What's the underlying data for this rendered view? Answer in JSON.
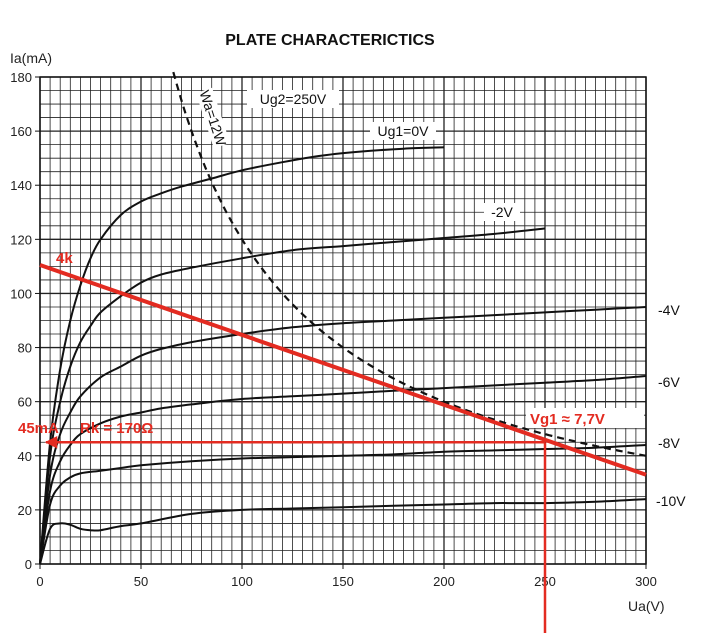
{
  "chart_data": {
    "type": "line",
    "title": "PLATE CHARACTERICTICS",
    "xlabel": "Ua(V)",
    "ylabel": "Ia(mA)",
    "xlim": [
      0,
      300
    ],
    "ylim": [
      0,
      180
    ],
    "xticks": [
      0,
      50,
      100,
      150,
      200,
      250,
      300
    ],
    "yticks": [
      0,
      20,
      40,
      60,
      80,
      100,
      120,
      140,
      160,
      180
    ],
    "grid": true,
    "condition_label": "Ug2=250V",
    "series": [
      {
        "name": "Ug1=0V",
        "label": "Ug1=0V",
        "x": [
          0,
          5,
          10,
          15,
          20,
          25,
          30,
          40,
          50,
          60,
          70,
          85,
          100,
          120,
          140,
          160,
          180,
          200
        ],
        "y": [
          0,
          45,
          72,
          90,
          103,
          113,
          120,
          129,
          134,
          137,
          139.5,
          142.5,
          145.5,
          148.5,
          151,
          152.5,
          153.5,
          154
        ]
      },
      {
        "name": "-2V",
        "label": "-2V",
        "x": [
          0,
          5,
          10,
          15,
          20,
          25,
          30,
          40,
          50,
          60,
          75,
          100,
          125,
          150,
          175,
          200,
          225,
          250
        ],
        "y": [
          0,
          40,
          60,
          73,
          82,
          88,
          93,
          99,
          104,
          107,
          109.5,
          113,
          116,
          117.5,
          119,
          120.5,
          122,
          124
        ]
      },
      {
        "name": "-4V",
        "label": "-4V",
        "x": [
          0,
          5,
          10,
          15,
          20,
          30,
          40,
          50,
          60,
          75,
          100,
          125,
          150,
          175,
          200,
          225,
          250,
          275,
          300
        ],
        "y": [
          0,
          33,
          48,
          56,
          62,
          69,
          73,
          77,
          79.5,
          82,
          85,
          87.5,
          89,
          90,
          91,
          92,
          93,
          94,
          95
        ]
      },
      {
        "name": "-6V",
        "label": "-6V",
        "x": [
          0,
          5,
          10,
          15,
          20,
          30,
          40,
          50,
          60,
          75,
          100,
          125,
          150,
          175,
          200,
          225,
          250,
          275,
          300
        ],
        "y": [
          0,
          27,
          38,
          44,
          48,
          52,
          54.5,
          56,
          57.5,
          59,
          61,
          62,
          63,
          64,
          65,
          66,
          67,
          68,
          69.5
        ]
      },
      {
        "name": "-8V",
        "label": "-8V",
        "x": [
          0,
          5,
          10,
          15,
          20,
          30,
          40,
          50,
          75,
          100,
          125,
          150,
          175,
          200,
          225,
          250,
          275,
          300
        ],
        "y": [
          0,
          22,
          29,
          32,
          33.5,
          34.5,
          35.5,
          36.5,
          38,
          39,
          39.5,
          40,
          40.5,
          41.5,
          42,
          42.5,
          43,
          44
        ]
      },
      {
        "name": "-10V",
        "label": "-10V",
        "x": [
          0,
          5,
          10,
          15,
          20,
          25,
          30,
          40,
          50,
          75,
          100,
          125,
          150,
          175,
          200,
          225,
          250,
          275,
          300
        ],
        "y": [
          0,
          13,
          15,
          14.5,
          13,
          12.5,
          12.5,
          14,
          15,
          18.5,
          20,
          20.5,
          21,
          21.5,
          22,
          22.5,
          22.5,
          23,
          24
        ]
      }
    ],
    "power_limit": {
      "label": "Wa=12W",
      "watts": 12
    },
    "annotations": {
      "load_line": {
        "label": "4k",
        "x": [
          0,
          300
        ],
        "y": [
          110.5,
          33
        ]
      },
      "operating_point": {
        "x": 250,
        "y": 45
      },
      "current_label": "45mA",
      "rk_label": "Rk = 170Ω",
      "vg1_label": "Vg1 ≈ 7,7V"
    },
    "colors": {
      "curve": "#111111",
      "grid": "#222222",
      "annotation": "#e32b21"
    }
  }
}
